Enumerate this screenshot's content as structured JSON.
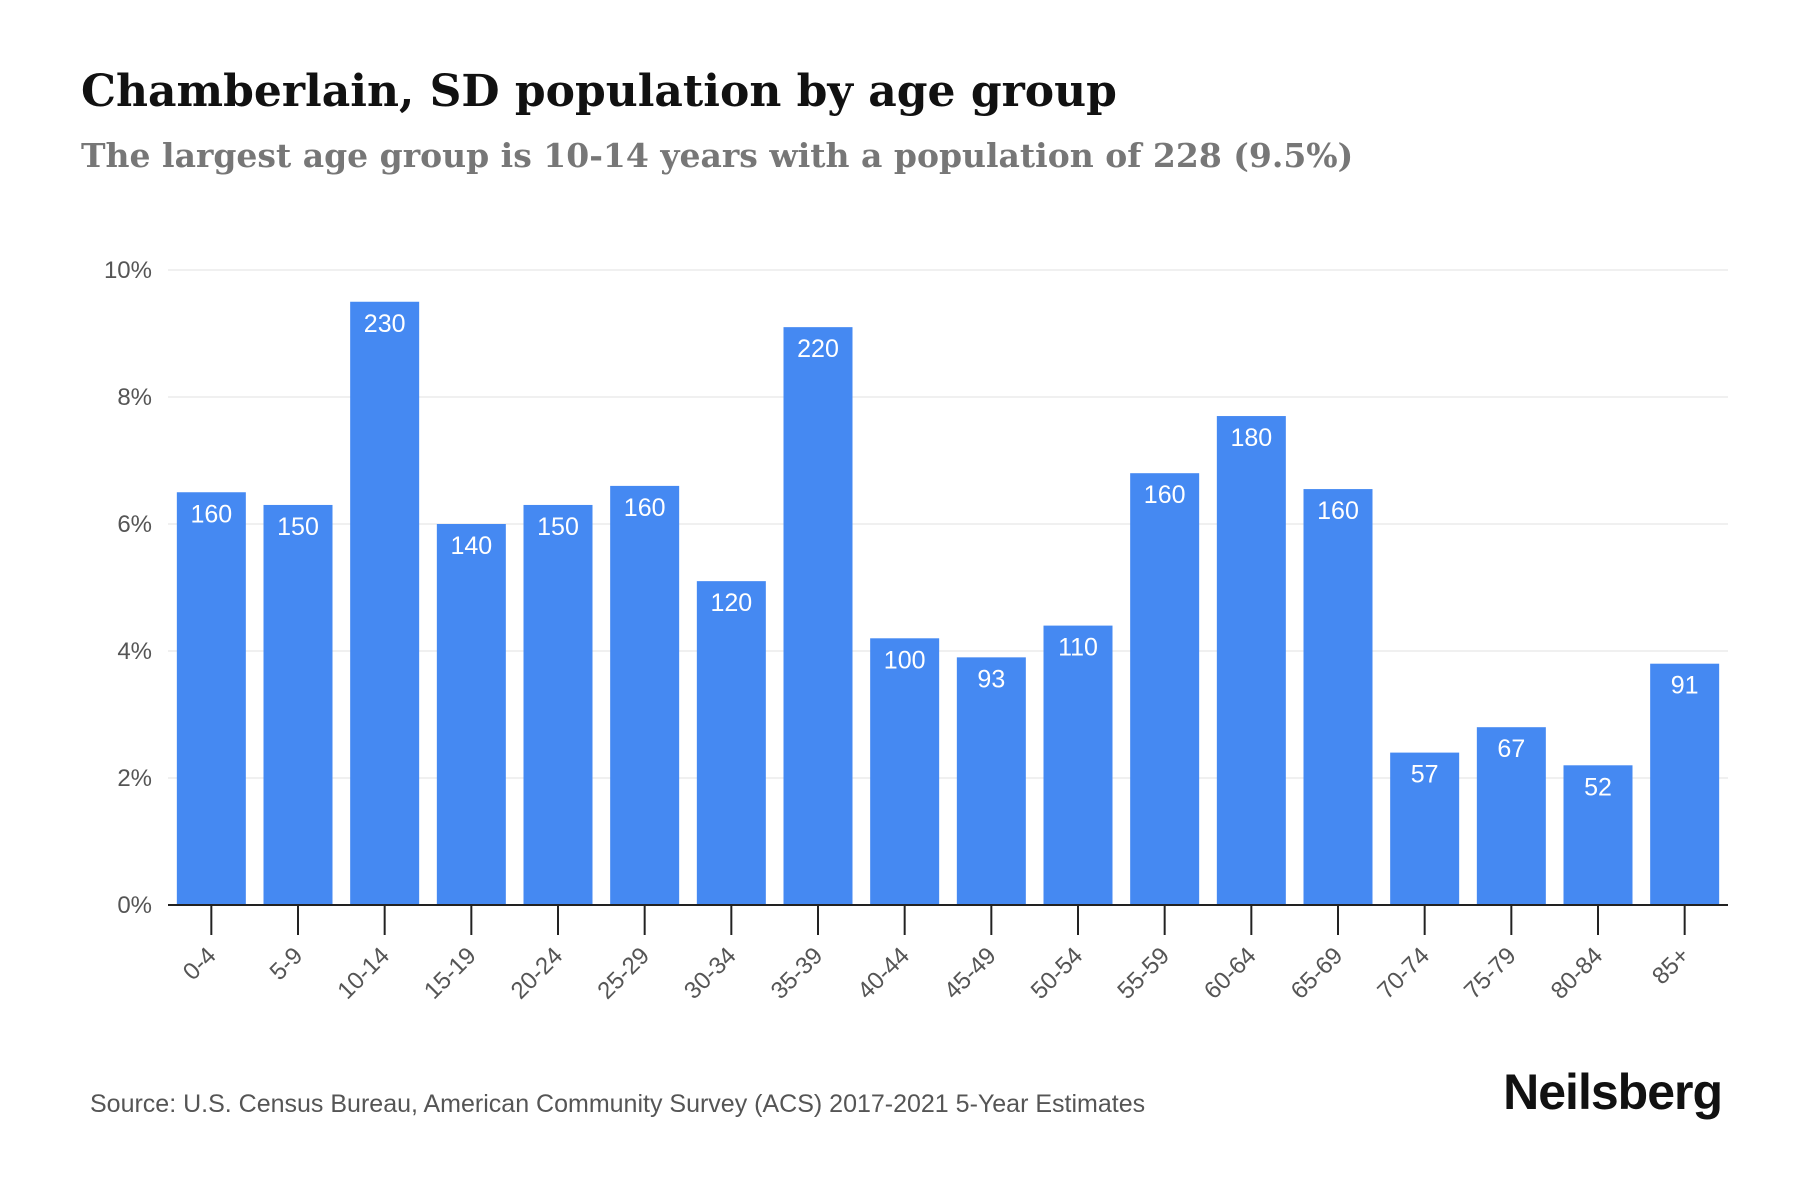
{
  "header": {
    "title": "Chamberlain, SD population by age group",
    "subtitle": "The largest age group is 10-14 years with a population of 228 (9.5%)"
  },
  "footer": {
    "source": "Source: U.S. Census Bureau, American Community Survey (ACS) 2017-2021 5-Year Estimates",
    "brand": "Neilsberg"
  },
  "colors": {
    "bar": "#4589f2",
    "bar_label": "#ffffff",
    "grid": "#ececec",
    "axis": "#222222",
    "tick_text": "#555555"
  },
  "chart_data": {
    "type": "bar",
    "title": "Chamberlain, SD population by age group",
    "subtitle": "The largest age group is 10-14 years with a population of 228 (9.5%)",
    "xlabel": "",
    "ylabel": "",
    "categories": [
      "0-4",
      "5-9",
      "10-14",
      "15-19",
      "20-24",
      "25-29",
      "30-34",
      "35-39",
      "40-44",
      "45-49",
      "50-54",
      "55-59",
      "60-64",
      "65-69",
      "70-74",
      "75-79",
      "80-84",
      "85+"
    ],
    "values": [
      6.5,
      6.3,
      9.5,
      6.0,
      6.3,
      6.6,
      5.1,
      9.1,
      4.2,
      3.9,
      4.4,
      6.8,
      7.7,
      6.55,
      2.4,
      2.8,
      2.2,
      3.8
    ],
    "value_unit": "%",
    "data_labels": [
      "160",
      "150",
      "230",
      "140",
      "150",
      "160",
      "120",
      "220",
      "100",
      "93",
      "110",
      "160",
      "180",
      "160",
      "57",
      "67",
      "52",
      "91"
    ],
    "ylim": [
      0,
      10
    ],
    "y_ticks": [
      0,
      2,
      4,
      6,
      8,
      10
    ],
    "y_tick_labels": [
      "0%",
      "2%",
      "4%",
      "6%",
      "8%",
      "10%"
    ],
    "grid": true,
    "legend": "none"
  }
}
